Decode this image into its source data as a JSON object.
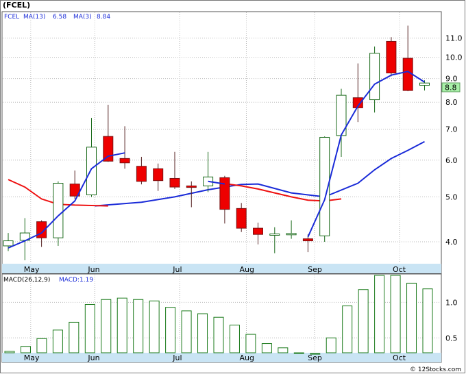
{
  "title": "(FCEL)",
  "footer": "© 12Stocks.com",
  "colors": {
    "up": "#ffffff",
    "down": "#ee0000",
    "ma_fast": "#ee1111",
    "ma_slow": "#1a2bd8",
    "axis_band": "#c9e4f4",
    "macd_bar": "#1a7a1a",
    "grid": "#b9b9b9",
    "last_price_bg": "#a8f0a8"
  },
  "chart_data": [
    {
      "type": "candlestick",
      "legend": [
        {
          "label": "FCEL",
          "color": "#1a2bd8"
        },
        {
          "label": "MA(13)",
          "value": "6.58",
          "color": "#1a2bd8"
        },
        {
          "label": "MA(3)",
          "value": "8.84",
          "color": "#1a2bd8"
        }
      ],
      "y_scale": "log",
      "ylim": [
        3.6,
        12.5
      ],
      "y_ticks": [
        "4.0",
        "5.0",
        "6.0",
        "7.0",
        "8.0",
        "9.0",
        "10.0",
        "11.0"
      ],
      "x_ticks": [
        "May",
        "Jun",
        "Jul",
        "Aug",
        "Sep",
        "Oct"
      ],
      "last_price": "8.8",
      "candles": [
        {
          "o": 3.92,
          "h": 4.18,
          "l": 3.82,
          "c": 4.02
        },
        {
          "o": 4.03,
          "h": 4.5,
          "l": 3.65,
          "c": 4.18
        },
        {
          "o": 4.42,
          "h": 4.45,
          "l": 3.9,
          "c": 4.08
        },
        {
          "o": 4.08,
          "h": 5.4,
          "l": 3.92,
          "c": 5.35
        },
        {
          "o": 5.33,
          "h": 5.7,
          "l": 4.95,
          "c": 5.02
        },
        {
          "o": 5.05,
          "h": 7.4,
          "l": 5.0,
          "c": 6.4
        },
        {
          "o": 6.75,
          "h": 7.9,
          "l": 5.95,
          "c": 5.97
        },
        {
          "o": 6.05,
          "h": 7.1,
          "l": 5.75,
          "c": 5.92
        },
        {
          "o": 5.82,
          "h": 6.1,
          "l": 5.32,
          "c": 5.4
        },
        {
          "o": 5.75,
          "h": 5.9,
          "l": 5.15,
          "c": 5.42
        },
        {
          "o": 5.48,
          "h": 6.25,
          "l": 5.2,
          "c": 5.25
        },
        {
          "o": 5.28,
          "h": 5.4,
          "l": 4.75,
          "c": 5.24
        },
        {
          "o": 5.28,
          "h": 6.25,
          "l": 5.12,
          "c": 5.52
        },
        {
          "o": 5.5,
          "h": 5.55,
          "l": 4.38,
          "c": 4.7
        },
        {
          "o": 4.72,
          "h": 4.85,
          "l": 4.2,
          "c": 4.28
        },
        {
          "o": 4.28,
          "h": 4.4,
          "l": 3.95,
          "c": 4.15
        },
        {
          "o": 4.15,
          "h": 4.3,
          "l": 3.78,
          "c": 4.16
        },
        {
          "o": 4.16,
          "h": 4.45,
          "l": 4.06,
          "c": 4.17
        },
        {
          "o": 4.06,
          "h": 4.15,
          "l": 3.8,
          "c": 4.02
        },
        {
          "o": 4.12,
          "h": 6.75,
          "l": 4.0,
          "c": 6.72
        },
        {
          "o": 6.78,
          "h": 8.55,
          "l": 6.1,
          "c": 8.28
        },
        {
          "o": 8.18,
          "h": 9.7,
          "l": 7.25,
          "c": 7.78
        },
        {
          "o": 8.1,
          "h": 10.55,
          "l": 7.6,
          "c": 10.2
        },
        {
          "o": 10.82,
          "h": 11.05,
          "l": 9.1,
          "c": 9.25
        },
        {
          "o": 9.95,
          "h": 11.7,
          "l": 8.45,
          "c": 8.48
        },
        {
          "o": 8.7,
          "h": 8.92,
          "l": 8.48,
          "c": 8.8
        }
      ],
      "ma_fast_series": [
        5.45,
        5.25,
        4.95,
        4.82,
        4.8,
        4.79,
        4.78,
        null,
        null,
        null,
        null,
        null,
        null,
        5.34,
        5.28,
        5.2,
        5.1,
        5.0,
        4.92,
        4.9,
        4.95,
        null,
        null,
        null,
        null,
        null
      ],
      "ma_slow_series": [
        3.88,
        4.02,
        4.18,
        4.55,
        4.9,
        5.75,
        6.12,
        6.22,
        null,
        null,
        null,
        null,
        5.4,
        5.33,
        null,
        null,
        null,
        null,
        4.1,
        4.93,
        6.8,
        7.85,
        8.75,
        9.15,
        9.32,
        8.84
      ],
      "ma_long_points": [
        {
          "i": 5.2,
          "v": 4.78
        },
        {
          "i": 8.0,
          "v": 4.87
        },
        {
          "i": 10.0,
          "v": 5.0
        },
        {
          "i": 12.0,
          "v": 5.18
        },
        {
          "i": 14.0,
          "v": 5.32
        },
        {
          "i": 15.0,
          "v": 5.33
        },
        {
          "i": 17.0,
          "v": 5.1
        },
        {
          "i": 19.0,
          "v": 5.0
        },
        {
          "i": 21.0,
          "v": 5.35
        },
        {
          "i": 22.0,
          "v": 5.72
        },
        {
          "i": 23.0,
          "v": 6.05
        },
        {
          "i": 24.0,
          "v": 6.3
        },
        {
          "i": 25.0,
          "v": 6.58
        }
      ]
    },
    {
      "type": "bar",
      "legend": [
        {
          "label": "MACD(26,12,9)",
          "color": "#000000"
        },
        {
          "label": "MACD:1.19",
          "color": "#1a2bd8"
        }
      ],
      "ylim": [
        0.3,
        1.38
      ],
      "y_ticks": [
        "0.5",
        "1.0"
      ],
      "x_ticks": [
        "May",
        "Jun",
        "Jul",
        "Aug",
        "Sep",
        "Oct"
      ],
      "values": [
        0.31,
        0.38,
        0.49,
        0.61,
        0.72,
        0.97,
        1.04,
        1.06,
        1.04,
        1.02,
        0.93,
        0.88,
        0.84,
        0.79,
        0.68,
        0.55,
        0.42,
        0.36,
        0.29,
        0.28,
        0.5,
        0.95,
        1.18,
        1.38,
        1.39,
        1.27,
        1.19
      ]
    }
  ]
}
